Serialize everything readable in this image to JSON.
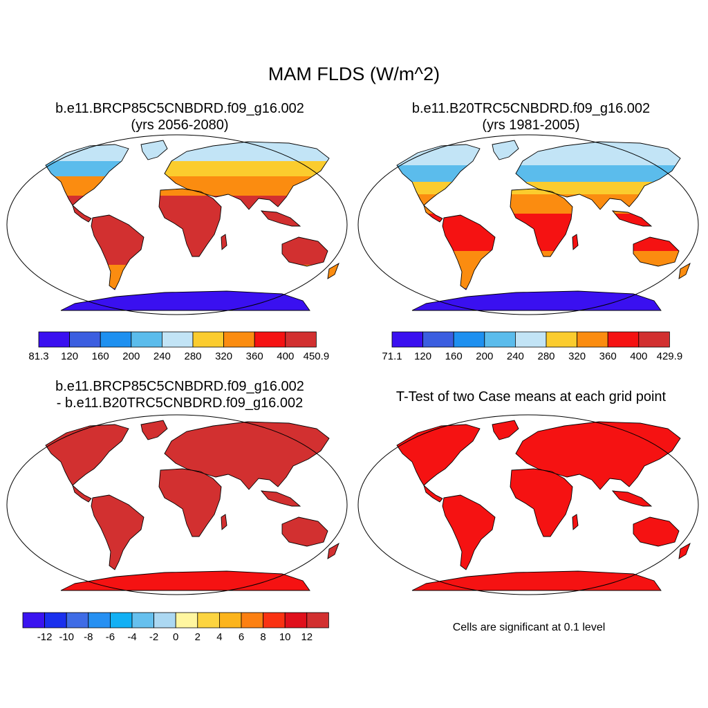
{
  "title": "MAM FLDS (W/m^2)",
  "panels": [
    {
      "title_line1": "b.e11.BRCP85C5CNBDRD.f09_g16.002",
      "title_line2": "(yrs 2056-2080)"
    },
    {
      "title_line1": "b.e11.B20TRC5CNBDRD.f09_g16.002",
      "title_line2": "(yrs 1981-2005)"
    },
    {
      "title_line1": "b.e11.BRCP85C5CNBDRD.f09_g16.002",
      "title_line2": "- b.e11.B20TRC5CNBDRD.f09_g16.002"
    },
    {
      "title_line1": "T-Test of two Case means at each grid point",
      "title_line2": ""
    }
  ],
  "colorbars": [
    {
      "colors": [
        "#3a10f0",
        "#3b5ee0",
        "#1e90f0",
        "#5bbcec",
        "#c2e4f6",
        "#fbcc2e",
        "#fb8c10",
        "#f51212",
        "#d23030"
      ],
      "labels": [
        "81.3",
        "120",
        "160",
        "200",
        "240",
        "280",
        "320",
        "360",
        "400",
        "450.9"
      ]
    },
    {
      "colors": [
        "#3a10f0",
        "#3b5ee0",
        "#1e90f0",
        "#5bbcec",
        "#c2e4f6",
        "#fbcc2e",
        "#fb8c10",
        "#f51212",
        "#d23030"
      ],
      "labels": [
        "71.1",
        "120",
        "160",
        "200",
        "240",
        "280",
        "320",
        "360",
        "400",
        "429.9"
      ]
    },
    {
      "colors": [
        "#3a14f0",
        "#1a30ee",
        "#3f6ce6",
        "#2690f2",
        "#12b0f4",
        "#66c0ee",
        "#acd8f2",
        "#fff6a0",
        "#fcd440",
        "#fcb41c",
        "#fc8012",
        "#fa3212",
        "#e0101c",
        "#d23030"
      ],
      "labels": [
        "-12",
        "-10",
        "-8",
        "-6",
        "-4",
        "-2",
        "0",
        "2",
        "4",
        "6",
        "8",
        "10",
        "12"
      ]
    }
  ],
  "significance_note": "Cells are significant at 0.1 level",
  "map_colors": {
    "difference_fill": "#d23030",
    "difference_antarctic": "#f51212",
    "ttest_fill": "#f51212"
  }
}
